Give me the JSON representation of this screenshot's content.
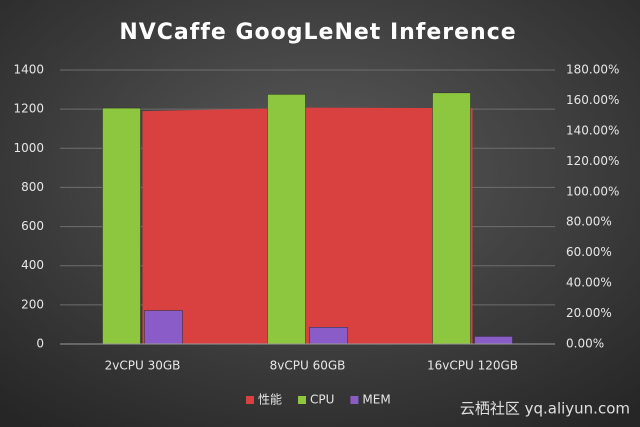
{
  "chart_data": {
    "type": "combo",
    "title": "NVCaffe GoogLeNet Inference",
    "categories": [
      "2vCPU 30GB",
      "8vCPU 60GB",
      "16vCPU 120GB"
    ],
    "series": [
      {
        "name": "性能",
        "type": "area",
        "color": "#d94040",
        "values": [
          1190,
          1208,
          1205
        ]
      },
      {
        "name": "CPU",
        "type": "bar",
        "axis": "y2",
        "color": "#8dc63f",
        "values": [
          155,
          164,
          165
        ]
      },
      {
        "name": "MEM",
        "type": "bar",
        "axis": "y2",
        "color": "#8a5cc8",
        "values": [
          22,
          11,
          5
        ]
      }
    ],
    "ylim": [
      0,
      1400
    ],
    "yticks": [
      0,
      200,
      400,
      600,
      800,
      1000,
      1200,
      1400
    ],
    "y2lim": [
      0,
      180
    ],
    "y2ticks": [
      {
        "value": 0,
        "label": "0.00%"
      },
      {
        "value": 20,
        "label": "20.00%"
      },
      {
        "value": 40,
        "label": "40.00%"
      },
      {
        "value": 60,
        "label": "60.00%"
      },
      {
        "value": 80,
        "label": "80.00%"
      },
      {
        "value": 100,
        "label": "100.00%"
      },
      {
        "value": 120,
        "label": "120.00%"
      },
      {
        "value": 140,
        "label": "140.00%"
      },
      {
        "value": 160,
        "label": "160.00%"
      },
      {
        "value": 180,
        "label": "180.00%"
      }
    ],
    "grid": true,
    "legend": "bottom",
    "watermark": "云栖社区 yq.aliyun.com"
  }
}
